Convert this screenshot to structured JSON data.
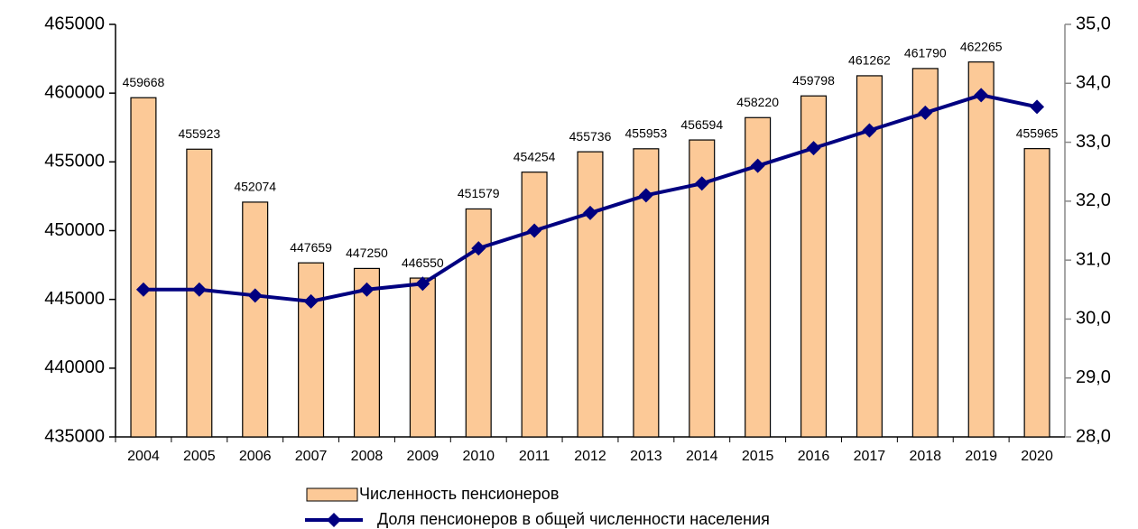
{
  "chart_data": {
    "type": "bar",
    "categories": [
      "2004",
      "2005",
      "2006",
      "2007",
      "2008",
      "2009",
      "2010",
      "2011",
      "2012",
      "2013",
      "2014",
      "2015",
      "2016",
      "2017",
      "2018",
      "2019",
      "2020"
    ],
    "series": [
      {
        "name": "Численность пенсионеров",
        "type": "bar",
        "color": "#fcc997",
        "values": [
          459668,
          455923,
          452074,
          447659,
          447250,
          446550,
          451579,
          454254,
          455736,
          455953,
          456594,
          458220,
          459798,
          461262,
          461790,
          462265,
          455965
        ]
      },
      {
        "name": "Доля пенсионеров в общей численности населения",
        "type": "line",
        "axis": "y2",
        "color": "#000080",
        "values": [
          30.5,
          30.5,
          30.4,
          30.3,
          30.5,
          30.6,
          31.2,
          31.5,
          31.8,
          32.1,
          32.3,
          32.6,
          32.9,
          33.2,
          33.5,
          33.8,
          33.6
        ]
      }
    ],
    "ylim": [
      435000,
      465000
    ],
    "yticks": [
      435000,
      440000,
      445000,
      450000,
      455000,
      460000,
      465000
    ],
    "y2lim": [
      28,
      35
    ],
    "y2ticks": [
      {
        "value": 28,
        "label": "28,0"
      },
      {
        "value": 29,
        "label": "29,0"
      },
      {
        "value": 30,
        "label": "30,0"
      },
      {
        "value": 31,
        "label": "31,0"
      },
      {
        "value": 32,
        "label": "32,0"
      },
      {
        "value": 33,
        "label": "33,0"
      },
      {
        "value": 34,
        "label": "34,0"
      },
      {
        "value": 35,
        "label": "35,0"
      }
    ],
    "grid": false,
    "legend": "bottom"
  }
}
